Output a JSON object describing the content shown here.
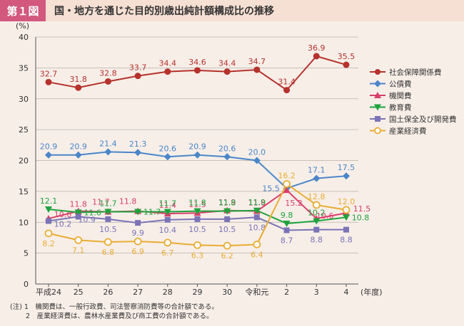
{
  "header": {
    "badge": "第１図",
    "title": "国・地方を通じた目的別歳出純計額構成比の推移"
  },
  "notes": [
    "(注) 1　機関費は、一般行政費、司法警察消防費等の合計額である。",
    "　　 2　産業経済費は、農林水産業費及び商工費の合計額である。"
  ],
  "chart_data": {
    "type": "line",
    "ylabel": "(%)",
    "xlabel": "(年度)",
    "ylim": [
      0,
      40
    ],
    "yticks": [
      0,
      5,
      10,
      15,
      20,
      25,
      30,
      35,
      40
    ],
    "grid": true,
    "legend_position": "right",
    "categories": [
      "平成24",
      "25",
      "26",
      "27",
      "28",
      "29",
      "30",
      "令和元",
      "2",
      "3",
      "4"
    ],
    "series": [
      {
        "name": "社会保障関係費",
        "color": "#b5322d",
        "marker": "circle",
        "values": [
          32.7,
          31.8,
          32.8,
          33.7,
          34.4,
          34.6,
          34.4,
          34.7,
          31.4,
          36.9,
          35.5
        ],
        "labels": [
          "32.7",
          "31.8",
          "32.8",
          "33.7",
          "34.4",
          "34.6",
          "34.4",
          "34.7",
          "31.4",
          "36.9",
          "35.5"
        ]
      },
      {
        "name": "公債費",
        "color": "#4a86c8",
        "marker": "diamond",
        "values": [
          20.9,
          20.9,
          21.4,
          21.3,
          20.6,
          20.9,
          20.6,
          20.0,
          15.5,
          17.1,
          17.5
        ],
        "labels": [
          "20.9",
          "20.9",
          "21.4",
          "21.3",
          "20.6",
          "20.9",
          "20.6",
          "20.0",
          "15.5",
          "17.1",
          "17.5"
        ]
      },
      {
        "name": "機関費",
        "color": "#d93f6b",
        "marker": "triangle-up",
        "values": [
          10.6,
          11.8,
          11.7,
          11.8,
          11.4,
          11.5,
          11.9,
          11.8,
          15.2,
          10.6,
          11.5
        ],
        "labels": [
          "10.6",
          "11.8",
          "11.7",
          "11.8",
          "11.4",
          "11.5",
          "11.9",
          "11.8",
          "15.2",
          "10.6",
          "11.5"
        ]
      },
      {
        "name": "教育費",
        "color": "#1ea33c",
        "marker": "triangle-down",
        "values": [
          12.1,
          11.6,
          11.7,
          11.7,
          11.7,
          11.8,
          11.8,
          11.9,
          9.8,
          10.2,
          10.8
        ],
        "labels": [
          "12.1",
          "11.6",
          "11.7",
          "11.7",
          "11.7",
          "11.8",
          "11.8",
          "11.9",
          "9.8",
          "10.2",
          "10.8"
        ]
      },
      {
        "name": "国土保全及び開発費",
        "color": "#7a74b6",
        "marker": "square",
        "values": [
          10.2,
          10.9,
          10.5,
          9.9,
          10.4,
          10.5,
          10.5,
          10.8,
          8.7,
          8.8,
          8.8
        ],
        "labels": [
          "10.2",
          "10.9",
          "10.5",
          "9.9",
          "10.4",
          "10.5",
          "10.5",
          "10.8",
          "8.7",
          "8.8",
          "8.8"
        ]
      },
      {
        "name": "産業経済費",
        "color": "#e9ad32",
        "marker": "circle-open",
        "values": [
          8.2,
          7.1,
          6.8,
          6.9,
          6.7,
          6.3,
          6.2,
          6.4,
          16.2,
          12.8,
          12.0
        ],
        "labels": [
          "8.2",
          "7.1",
          "6.8",
          "6.9",
          "6.7",
          "6.3",
          "6.2",
          "6.4",
          "16.2",
          "12.8",
          "12.0"
        ]
      }
    ]
  }
}
